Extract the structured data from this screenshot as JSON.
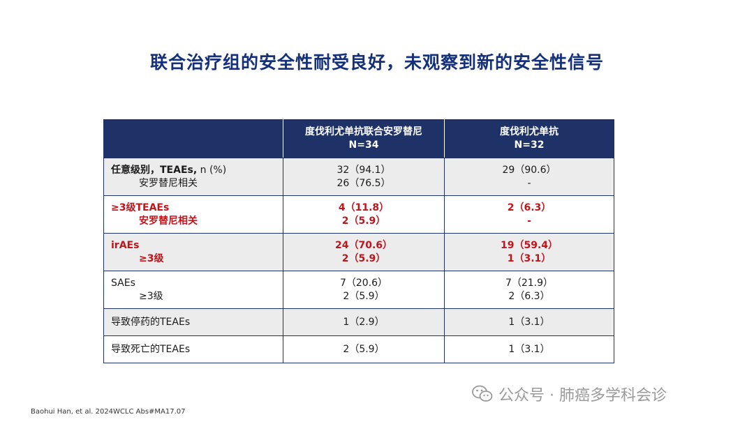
{
  "title": "联合治疗组的安全性耐受良好，未观察到新的安全性信号",
  "table": {
    "headers": [
      {
        "line1": "",
        "line2": ""
      },
      {
        "line1": "度伐利尤单抗联合安罗替尼",
        "line2": "N=34"
      },
      {
        "line1": "度伐利尤单抗",
        "line2": "N=32"
      }
    ],
    "rows": [
      {
        "main": "任意级别，TEAEs,",
        "main_suffix": " n (%)",
        "sub": "安罗替尼相关",
        "a_main": "32（94.1）",
        "a_sub": "26（76.5）",
        "b_main": "29（90.6）",
        "b_sub": "-"
      },
      {
        "main": "≥3级TEAEs",
        "sub": "安罗替尼相关",
        "a_main": "4（11.8）",
        "a_sub": "2（5.9）",
        "b_main": "2（6.3）",
        "b_sub": "-"
      },
      {
        "main": "irAEs",
        "sub": "≥3级",
        "a_main": "24（70.6）",
        "a_sub": "2（5.9）",
        "b_main": "19（59.4）",
        "b_sub": "1（3.1）"
      },
      {
        "main": "SAEs",
        "sub": "≥3级",
        "a_main": "7（20.6）",
        "a_sub": "2（5.9）",
        "b_main": "7（21.9）",
        "b_sub": "2（6.3）"
      },
      {
        "main": "导致停药的TEAEs",
        "a_main": "1（2.9）",
        "b_main": "1（3.1）"
      },
      {
        "main": "导致死亡的TEAEs",
        "a_main": "2（5.9）",
        "b_main": "1（3.1）"
      }
    ]
  },
  "footer": "Baohui Han, et al. 2024WCLC Abs#MA17.07",
  "watermark": "公众号 · 肺癌多学科会诊",
  "colors": {
    "title": "#14307a",
    "header_bg": "#1f3268",
    "highlight": "#c0141b",
    "shade": "#ececec"
  }
}
